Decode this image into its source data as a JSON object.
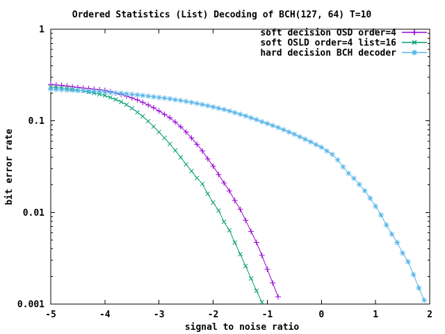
{
  "chart_data": {
    "type": "line",
    "title": "Ordered Statistics (List) Decoding of BCH(127, 64) T=10",
    "xlabel": "signal to noise ratio",
    "ylabel": "bit error rate",
    "xlim": [
      -5,
      2
    ],
    "ylim": [
      0.001,
      1
    ],
    "yscale": "log",
    "grid": "off",
    "legend_position": "top-right-inside",
    "x_ticks": [
      -5,
      -4,
      -3,
      -2,
      -1,
      0,
      1,
      2
    ],
    "x_tick_labels": [
      "-5",
      "-4",
      "-3",
      "-2",
      "-1",
      "0",
      "1",
      "2"
    ],
    "y_ticks": [
      1,
      0.1,
      0.01,
      0.001
    ],
    "y_tick_labels": [
      "1",
      "0.1",
      "0.01",
      "0.001"
    ],
    "background_color": "#ffffff",
    "axis_color": "#000000",
    "series": [
      {
        "name": "soft decision OSD order=4",
        "color": "#9400d3",
        "marker": "plus",
        "x_start": -5.0,
        "x_step": 0.1,
        "values": [
          0.25,
          0.247,
          0.244,
          0.24,
          0.236,
          0.232,
          0.228,
          0.225,
          0.222,
          0.219,
          0.215,
          0.208,
          0.201,
          0.194,
          0.186,
          0.178,
          0.169,
          0.159,
          0.149,
          0.139,
          0.128,
          0.118,
          0.108,
          0.097,
          0.086,
          0.0755,
          0.065,
          0.0555,
          0.047,
          0.0385,
          0.032,
          0.026,
          0.021,
          0.0172,
          0.0135,
          0.0108,
          0.0082,
          0.0062,
          0.0047,
          0.0034,
          0.0024,
          0.0017,
          0.0012
        ]
      },
      {
        "name": "soft OSLD order=4 list=16",
        "color": "#009e73",
        "marker": "cross",
        "x_start": -5.0,
        "x_step": 0.1,
        "values": [
          0.234,
          0.231,
          0.228,
          0.224,
          0.22,
          0.216,
          0.212,
          0.207,
          0.201,
          0.195,
          0.189,
          0.18,
          0.171,
          0.161,
          0.15,
          0.137,
          0.124,
          0.112,
          0.099,
          0.0865,
          0.0755,
          0.065,
          0.056,
          0.0475,
          0.04,
          0.0335,
          0.0283,
          0.0238,
          0.0205,
          0.016,
          0.0128,
          0.0105,
          0.0079,
          0.0064,
          0.0047,
          0.0035,
          0.0026,
          0.0019,
          0.0014,
          0.00105
        ]
      },
      {
        "name": "hard decision BCH decoder",
        "color": "#56b4e9",
        "marker": "star",
        "x_start": -5.0,
        "x_step": 0.1,
        "values": [
          0.222,
          0.22,
          0.219,
          0.217,
          0.216,
          0.214,
          0.213,
          0.211,
          0.21,
          0.208,
          0.206,
          0.204,
          0.202,
          0.2,
          0.197,
          0.195,
          0.192,
          0.189,
          0.186,
          0.183,
          0.18,
          0.177,
          0.174,
          0.17,
          0.167,
          0.163,
          0.159,
          0.155,
          0.151,
          0.146,
          0.142,
          0.137,
          0.133,
          0.128,
          0.123,
          0.118,
          0.113,
          0.108,
          0.103,
          0.098,
          0.0935,
          0.089,
          0.0845,
          0.08,
          0.0755,
          0.0715,
          0.067,
          0.063,
          0.059,
          0.055,
          0.0515,
          0.047,
          0.043,
          0.0375,
          0.0315,
          0.0267,
          0.0236,
          0.0202,
          0.0173,
          0.0143,
          0.0117,
          0.0094,
          0.0073,
          0.0058,
          0.0047,
          0.0036,
          0.0029,
          0.0021,
          0.0015,
          0.0011
        ]
      }
    ]
  }
}
